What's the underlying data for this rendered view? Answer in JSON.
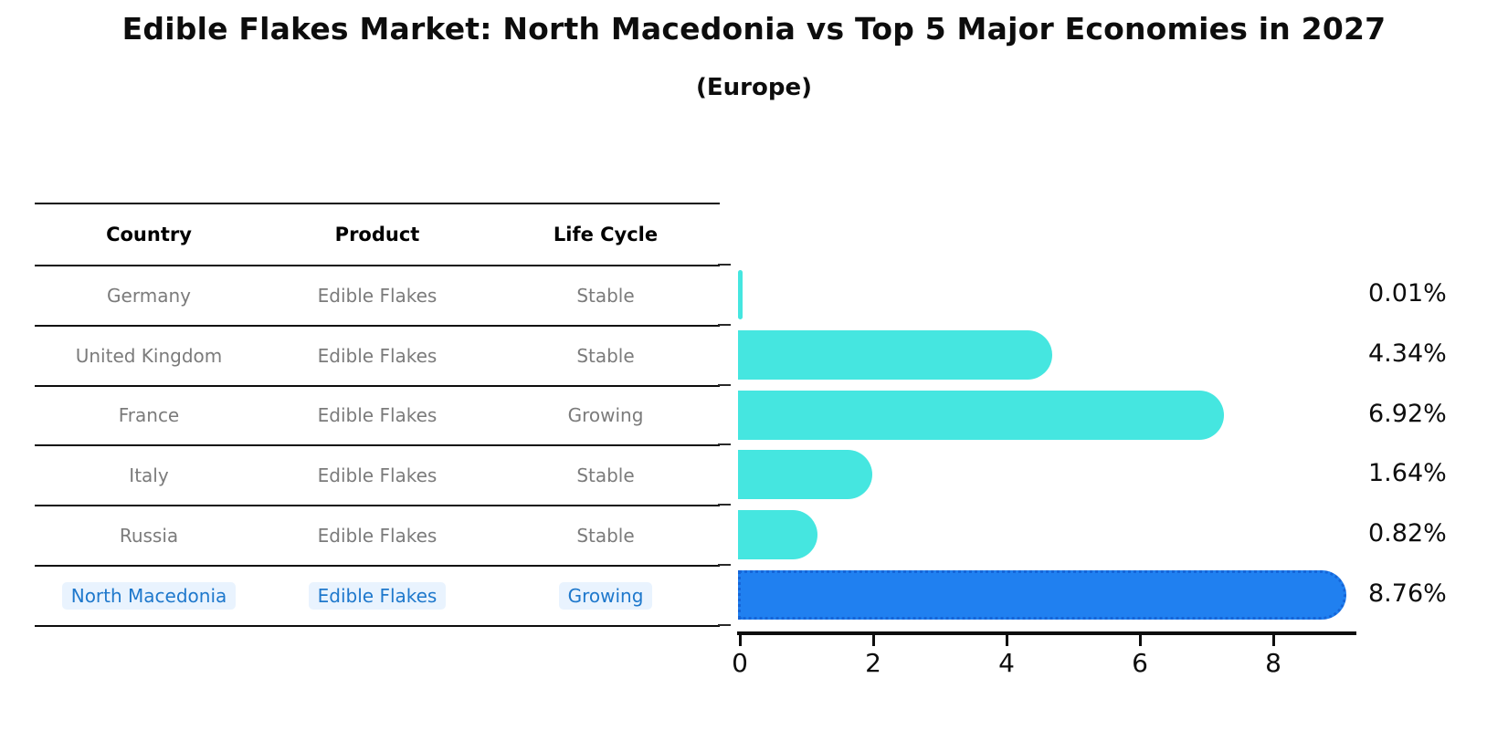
{
  "title": "Edible Flakes Market: North Macedonia vs Top 5 Major Economies in 2027",
  "subtitle": "(Europe)",
  "table": {
    "columns": [
      "Country",
      "Product",
      "Life Cycle"
    ],
    "rows": [
      {
        "country": "Germany",
        "product": "Edible Flakes",
        "life_cycle": "Stable"
      },
      {
        "country": "United Kingdom",
        "product": "Edible Flakes",
        "life_cycle": "Stable"
      },
      {
        "country": "France",
        "product": "Edible Flakes",
        "life_cycle": "Growing"
      },
      {
        "country": "Italy",
        "product": "Edible Flakes",
        "life_cycle": "Stable"
      },
      {
        "country": "Russia",
        "product": "Edible Flakes",
        "life_cycle": "Stable"
      },
      {
        "country": "North Macedonia",
        "product": "Edible Flakes",
        "life_cycle": "Growing"
      }
    ],
    "highlight_row": "North Macedonia"
  },
  "chart_data": {
    "type": "bar",
    "orientation": "horizontal",
    "title": "Edible Flakes Market: North Macedonia vs Top 5 Major Economies in 2027",
    "subtitle": "(Europe)",
    "categories": [
      "Germany",
      "United Kingdom",
      "France",
      "Italy",
      "Russia",
      "North Macedonia"
    ],
    "values": [
      0.01,
      4.34,
      6.92,
      1.64,
      0.82,
      8.76
    ],
    "value_labels": [
      "0.01%",
      "4.34%",
      "6.92%",
      "1.64%",
      "0.82%",
      "8.76%"
    ],
    "x_ticks": [
      0,
      2,
      4,
      6,
      8
    ],
    "xlim": [
      0,
      9.2
    ],
    "grid": false,
    "legend": false,
    "highlight_index": 5,
    "colors": {
      "bar": "#45e6e0",
      "highlight_bar": "#2080f0",
      "highlight_edge": "#1565d8",
      "row_text": "#7b7b7b",
      "highlight_text": "#1e78cc",
      "highlight_text_bg": "#e9f3fe",
      "axis": "#0d0d0d"
    }
  }
}
